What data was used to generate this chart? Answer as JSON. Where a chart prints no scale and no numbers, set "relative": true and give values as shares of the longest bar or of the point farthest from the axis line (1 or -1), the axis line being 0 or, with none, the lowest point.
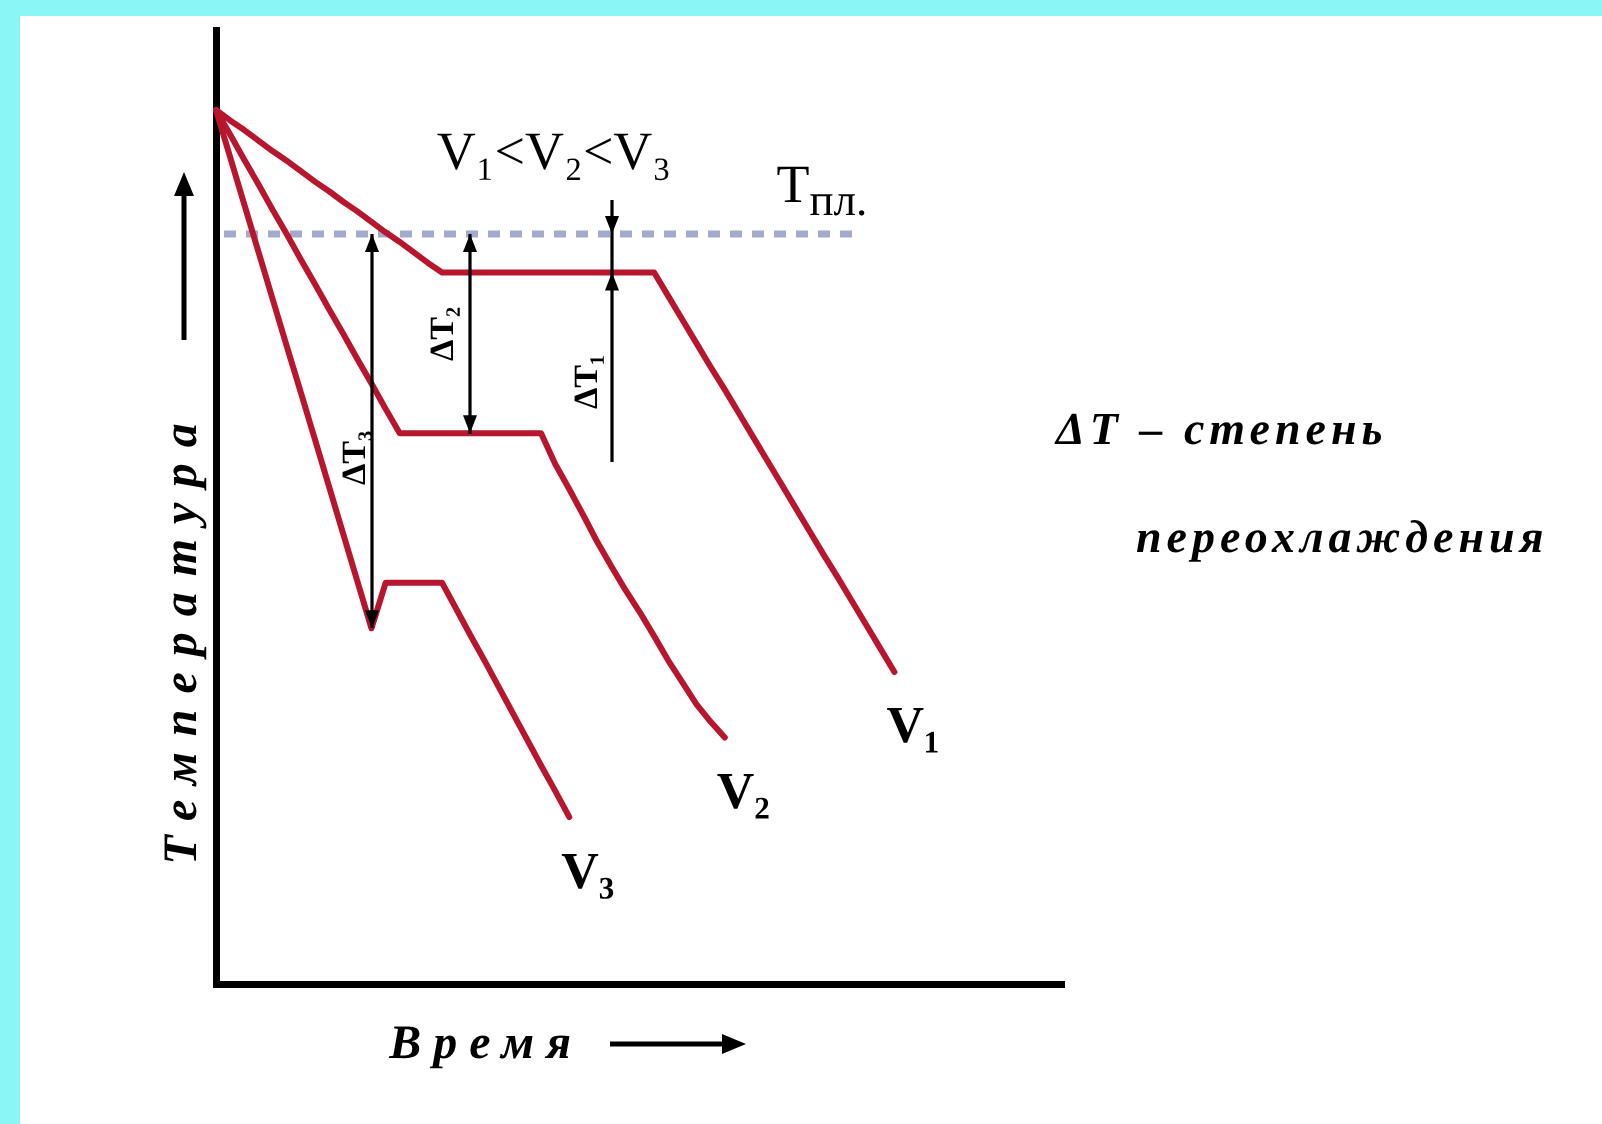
{
  "chart_data": {
    "type": "line",
    "relative": true,
    "xlabel": "Время",
    "ylabel": "Температура",
    "categories": [
      null,
      null,
      null,
      null,
      null,
      null,
      null,
      null,
      null,
      null,
      null,
      null,
      null,
      null,
      null,
      null,
      null,
      null,
      null,
      null,
      null,
      null,
      null,
      null,
      null,
      null,
      null,
      null,
      null,
      null,
      null,
      null,
      null,
      null,
      null,
      null,
      null,
      null,
      null,
      null,
      null,
      null,
      null,
      null,
      null,
      null,
      null,
      null,
      null,
      null,
      null,
      null,
      null,
      null,
      null,
      null,
      null,
      null,
      null,
      null,
      null
    ],
    "series": [
      {
        "name": "V₁",
        "color": "#b8152e",
        "values": [
          1,
          0.988,
          0.977,
          0.965,
          0.953,
          0.942,
          0.93,
          0.918,
          0.907,
          0.895,
          0.884,
          0.872,
          0.86,
          0.849,
          0.837,
          0.825,
          0.814,
          0.814,
          0.814,
          0.814,
          0.814,
          0.814,
          0.814,
          0.814,
          0.814,
          0.814,
          0.814,
          0.814,
          0.814,
          0.814,
          0.814,
          0.814,
          0.787,
          0.76,
          0.733,
          0.706,
          0.68,
          0.653,
          0.626,
          0.599,
          0.572,
          0.545,
          0.518,
          0.491,
          0.465,
          0.438,
          0.411,
          0.384,
          0.357,
          null,
          null,
          null,
          null,
          null,
          null,
          null,
          null,
          null,
          null,
          null,
          null
        ]
      },
      {
        "name": "V₂",
        "color": "#b8152e",
        "values": [
          1,
          0.972,
          0.943,
          0.915,
          0.886,
          0.858,
          0.829,
          0.801,
          0.772,
          0.744,
          0.715,
          0.687,
          0.658,
          0.63,
          0.63,
          0.63,
          0.63,
          0.63,
          0.63,
          0.63,
          0.63,
          0.63,
          0.63,
          0.63,
          0.595,
          0.566,
          0.536,
          0.505,
          0.477,
          0.45,
          0.425,
          0.398,
          0.37,
          0.345,
          0.32,
          0.3,
          0.282,
          null,
          null,
          null,
          null,
          null,
          null,
          null,
          null,
          null,
          null,
          null,
          null,
          null,
          null,
          null,
          null,
          null,
          null,
          null,
          null,
          null,
          null,
          null,
          null
        ]
      },
      {
        "name": "V₃",
        "color": "#b8152e",
        "values": [
          1,
          0.946,
          0.892,
          0.838,
          0.784,
          0.73,
          0.677,
          0.623,
          0.569,
          0.515,
          0.461,
          0.407,
          0.459,
          0.459,
          0.459,
          0.459,
          0.459,
          0.429,
          0.399,
          0.37,
          0.34,
          0.31,
          0.28,
          0.25,
          0.221,
          0.191,
          null,
          null,
          null,
          null,
          null,
          null,
          null,
          null,
          null,
          null,
          null,
          null,
          null,
          null,
          null,
          null,
          null,
          null,
          null,
          null,
          null,
          null,
          null,
          null,
          null,
          null,
          null,
          null,
          null,
          null,
          null,
          null,
          null,
          null,
          null
        ]
      }
    ],
    "ref_lines": [
      {
        "axis": "y",
        "value": 0.858,
        "label": "T$_{пл.}$",
        "color": "#a3aacb",
        "line_style": "dashed"
      }
    ],
    "annotations": [
      "V₁<V₂<V₃",
      "ΔT₁",
      "ΔT₂",
      "ΔT₃",
      "ΔT – степень переохлаждения"
    ]
  }
}
